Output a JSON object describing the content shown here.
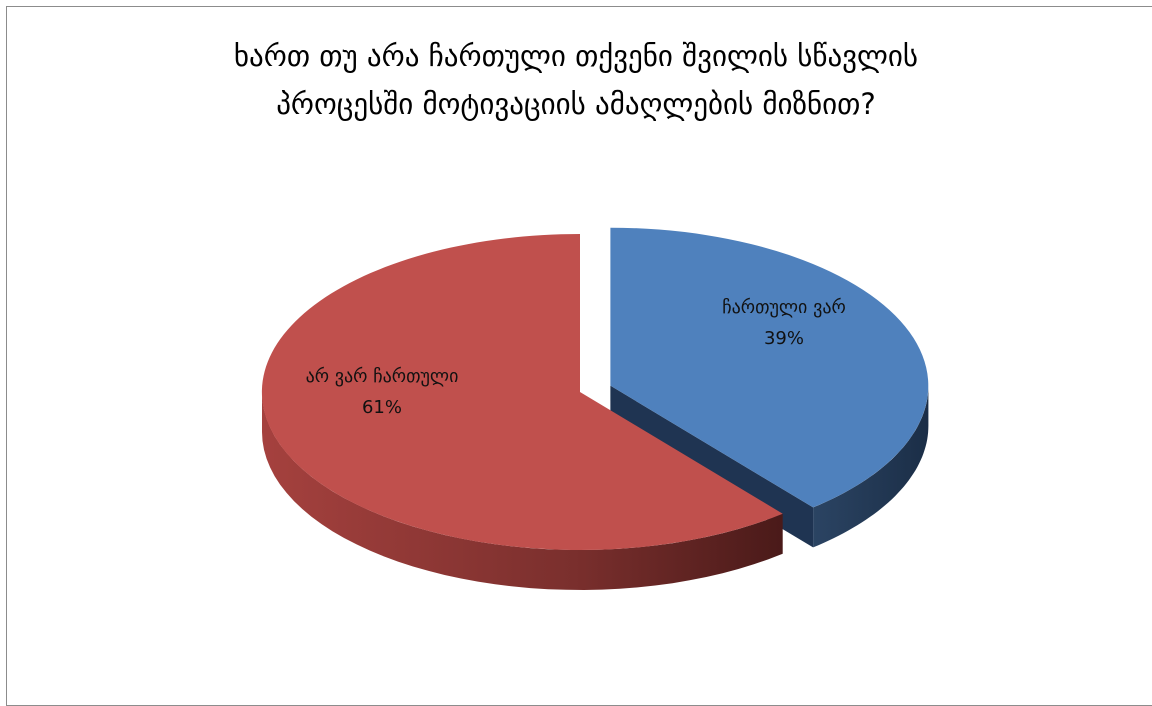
{
  "chart_data": {
    "type": "pie",
    "title_lines": [
      "ხართ თუ არა ჩართული თქვენი შვილის სწავლის",
      "პროცესში მოტივაციის ამაღლების მიზნით?"
    ],
    "slices": [
      {
        "name": "ჩართული ვარ",
        "value": 39,
        "percent_label": "39%",
        "color": "#4f81bd",
        "side_color": "#1f3452",
        "exploded": true
      },
      {
        "name": "არ ვარ ჩართული",
        "value": 61,
        "percent_label": "61%",
        "color": "#c0504d",
        "side_color": "#6e2826",
        "exploded": false
      }
    ],
    "style": "3d-exploded",
    "legend": "none"
  }
}
